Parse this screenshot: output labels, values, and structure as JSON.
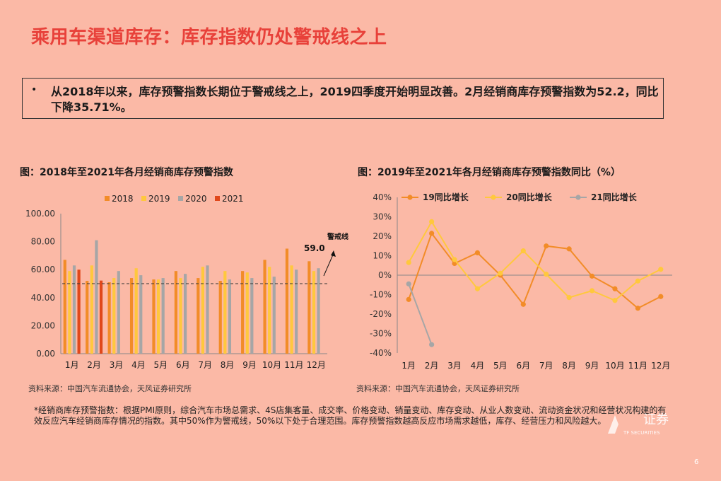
{
  "title": "乘用车渠道库存：库存指数仍处警戒线之上",
  "summary": {
    "bullet": "•",
    "text": "从2018年以来，库存预警指数长期位于警戒线之上，2019四季度开始明显改善。2月经销商库存预警指数为52.2，同比下降35.71%。"
  },
  "left_chart": {
    "caption": "图：2018年至2021年各月经销商库存预警指数",
    "source": "资料来源：中国汽车流通协会，天风证券研究所",
    "warning_label": "警戒线",
    "value_label": "59.0"
  },
  "right_chart": {
    "caption": "图：2019年至2021年各月经销商库存预警指数同比（%）",
    "source": "资料来源：中国汽车流通协会，天风证券研究所"
  },
  "note": "*经销商库存预警指数：根据PMI原则，综合汽车市场总需求、4S店集客量、成交率、价格变动、销量变动、库存变动、从业人数变动、流动资金状况和经营状况构建的有效反应汽车经销商库存情况的指数。其中50%作为警戒线，50%以下处于合理范围。库存预警指数越高反应市场需求越低，库存、经营压力和风险越大。",
  "logo": {
    "main": "证券",
    "sub": "TF SECURITIES"
  },
  "page_number": "6",
  "colors": {
    "background": "#FBB9A6",
    "title": "#E8413A",
    "s2018": "#F28C28",
    "s2019": "#FFC83D",
    "s2020": "#A6A6A6",
    "s2021": "#E0481B"
  },
  "chart_data": [
    {
      "type": "bar",
      "categories": [
        "1月",
        "2月",
        "3月",
        "4月",
        "5月",
        "6月",
        "7月",
        "8月",
        "9月",
        "10月",
        "11月",
        "12月"
      ],
      "ylim": [
        0,
        100
      ],
      "yticks": [
        "0.00",
        "20.00",
        "40.00",
        "60.00",
        "80.00",
        "100.00"
      ],
      "legend_position": "top",
      "reference_line": 50,
      "series": [
        {
          "name": "2018",
          "color": "#F28C28",
          "values": [
            67,
            52,
            51,
            54,
            53,
            59,
            54,
            52,
            59,
            67,
            75,
            66
          ]
        },
        {
          "name": "2019",
          "color": "#FFC83D",
          "values": [
            59,
            63,
            54,
            61,
            53,
            54,
            62,
            59,
            58,
            62,
            63,
            59
          ]
        },
        {
          "name": "2020",
          "color": "#A6A6A6",
          "values": [
            63,
            81,
            59,
            56,
            54,
            57,
            63,
            53,
            54,
            55,
            60,
            61
          ]
        },
        {
          "name": "2021",
          "color": "#E0481B",
          "values": [
            60,
            52.2,
            null,
            null,
            null,
            null,
            null,
            null,
            null,
            null,
            null,
            null
          ]
        }
      ]
    },
    {
      "type": "line",
      "categories": [
        "1月",
        "2月",
        "3月",
        "4月",
        "5月",
        "6月",
        "7月",
        "8月",
        "9月",
        "10月",
        "11月",
        "12月"
      ],
      "ylim": [
        -40,
        40
      ],
      "yticks": [
        "-40%",
        "-30%",
        "-20%",
        "-10%",
        "0%",
        "10%",
        "20%",
        "30%",
        "40%"
      ],
      "legend_position": "top",
      "series": [
        {
          "name": "19同比增长",
          "color": "#F28C28",
          "values": [
            -12.5,
            21.5,
            6,
            11.5,
            0,
            -15,
            15,
            13.5,
            -0.5,
            -7,
            -17,
            -11
          ]
        },
        {
          "name": "20同比增长",
          "color": "#FFC83D",
          "values": [
            6.5,
            27.5,
            8,
            -7,
            1,
            12.5,
            0.5,
            -11.5,
            -8,
            -13,
            -3,
            3
          ]
        },
        {
          "name": "21同比增长",
          "color": "#A6A6A6",
          "values": [
            -4.5,
            -35.7,
            null,
            null,
            null,
            null,
            null,
            null,
            null,
            null,
            null,
            null
          ]
        }
      ]
    }
  ]
}
